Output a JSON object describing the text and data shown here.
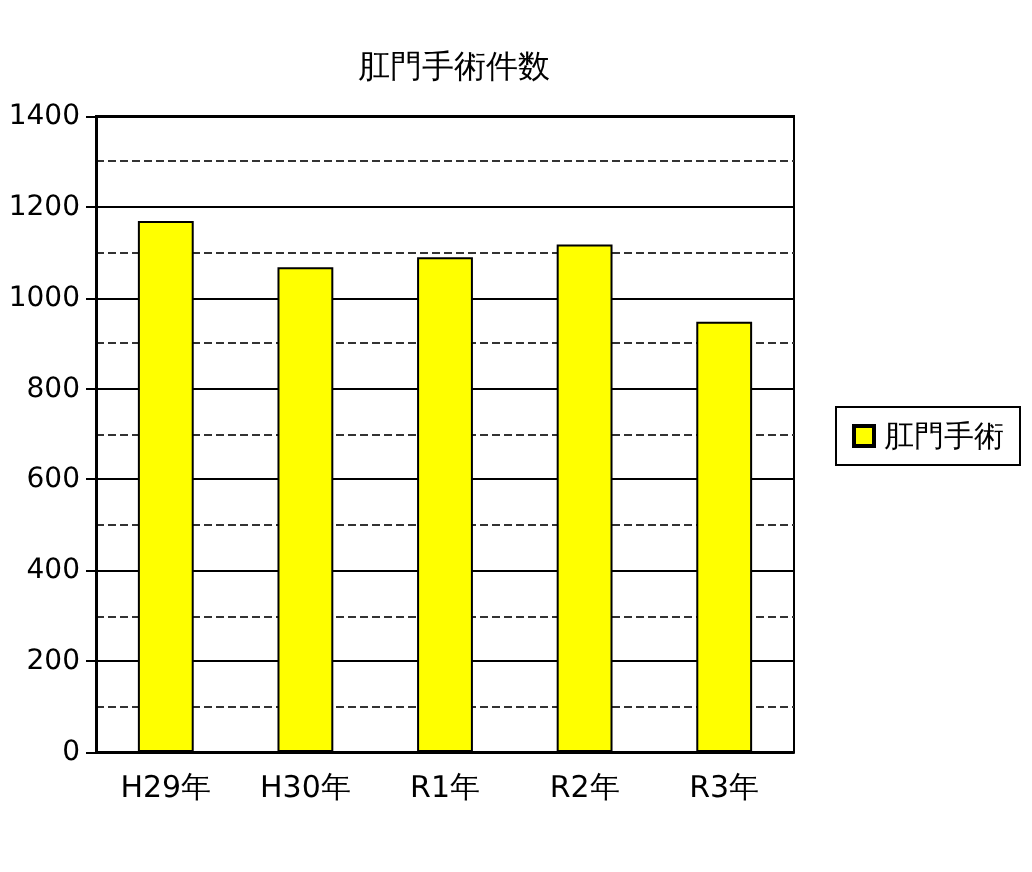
{
  "chart_data": {
    "type": "bar",
    "title": "肛門手術件数",
    "categories": [
      "H29年",
      "H30年",
      "R1年",
      "R2年",
      "R3年"
    ],
    "series": [
      {
        "name": "肛門手術",
        "color": "#ffff00",
        "values": [
          1169,
          1067,
          1089,
          1117,
          947
        ]
      }
    ],
    "ylim": [
      0,
      1400
    ],
    "yticks": [
      0,
      200,
      400,
      600,
      800,
      1000,
      1200,
      1400
    ],
    "grid": "y",
    "legend": "right"
  }
}
